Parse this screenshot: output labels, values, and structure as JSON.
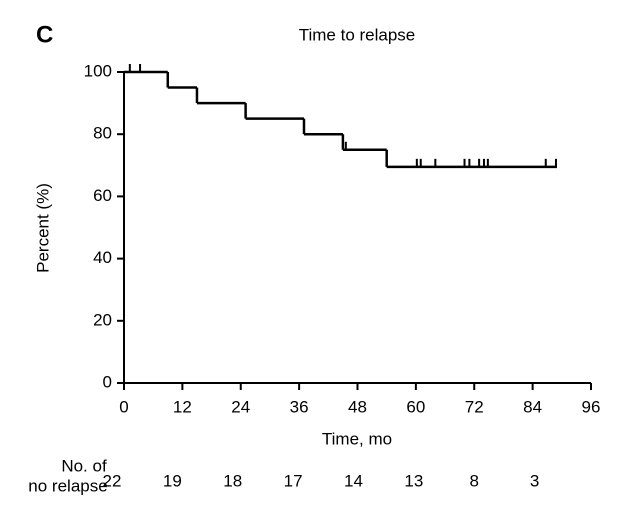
{
  "chart_data": {
    "type": "step",
    "panel_label": "C",
    "title": "Time to relapse",
    "y_label": "Percent (%)",
    "x_label": "Time, mo",
    "xlim": [
      0,
      96
    ],
    "xticks": [
      0,
      12,
      24,
      36,
      48,
      60,
      72,
      84,
      96
    ],
    "ylim": [
      0,
      100
    ],
    "yticks": [
      0,
      20,
      40,
      60,
      80,
      100
    ],
    "color": "#000000",
    "x": [
      0,
      9,
      15,
      25,
      37,
      45,
      54,
      89
    ],
    "values": [
      100,
      95,
      90,
      85,
      80,
      75,
      69.5,
      69.5
    ],
    "censored": {
      "x": [
        1.2,
        3.3,
        45.6,
        60.2,
        61,
        64,
        70,
        71,
        73,
        74,
        74.8,
        86.7,
        88.8
      ],
      "values": [
        100,
        100,
        75,
        69.5,
        69.5,
        69.5,
        69.5,
        69.5,
        69.5,
        69.5,
        69.5,
        69.5,
        69.5
      ]
    },
    "risk_label": [
      "No. of",
      "no relapse"
    ],
    "risk_x": [
      0,
      12,
      24,
      36,
      48,
      60,
      72,
      84
    ],
    "risk_values": [
      22,
      19,
      18,
      17,
      14,
      13,
      8,
      3
    ]
  }
}
